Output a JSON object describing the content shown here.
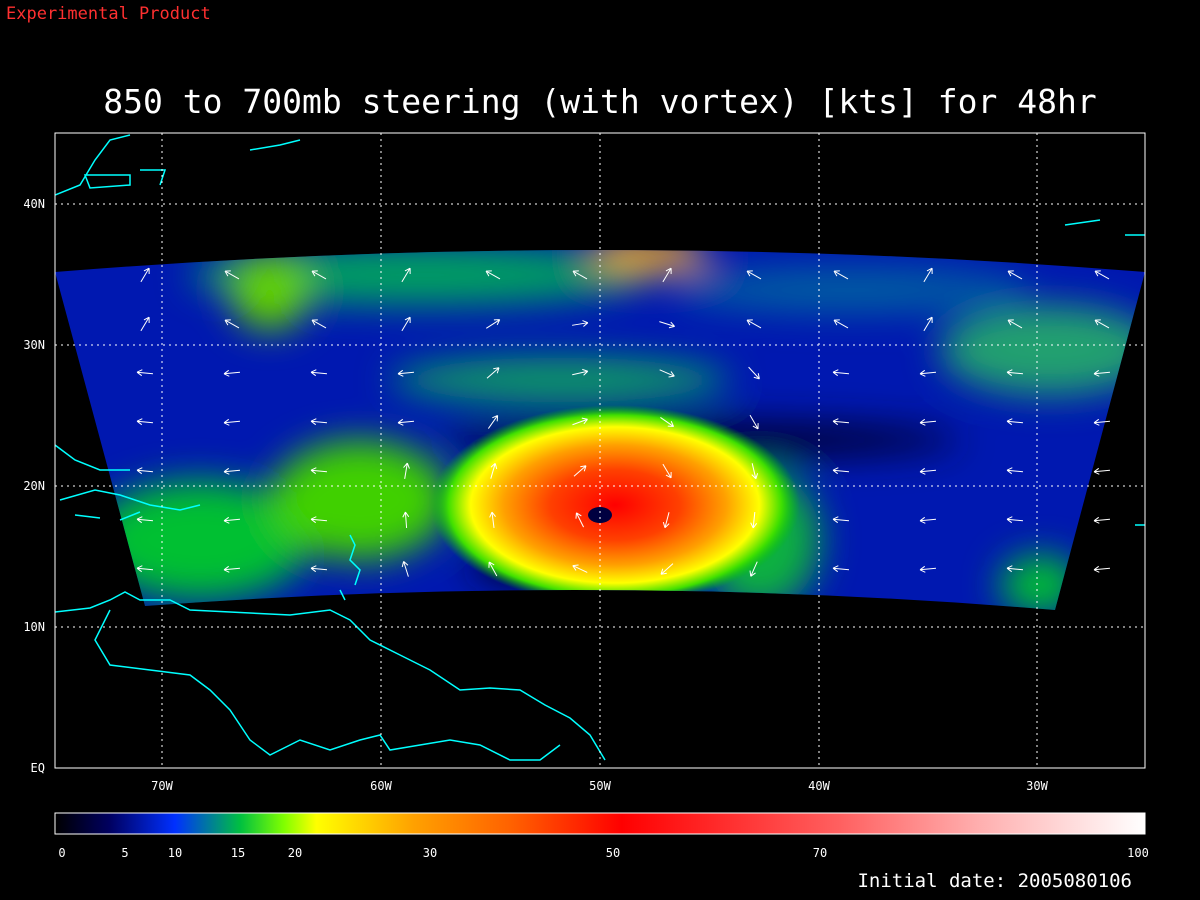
{
  "header": {
    "label": "Experimental Product"
  },
  "title": "850 to 700mb steering (with vortex) [kts] for 48hr",
  "map": {
    "lon_labels": [
      "70W",
      "60W",
      "50W",
      "40W",
      "30W"
    ],
    "lat_labels": [
      "EQ",
      "10N",
      "20N",
      "30N",
      "40N"
    ]
  },
  "colorbar": {
    "labels": [
      "0",
      "5",
      "10",
      "15",
      "20",
      "30",
      "50",
      "70",
      "100"
    ]
  },
  "footer": {
    "initial_date": "Initial date: 2005080106"
  }
}
